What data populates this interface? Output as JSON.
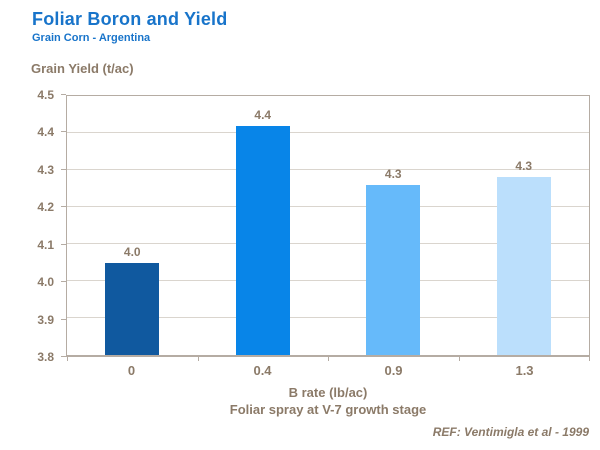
{
  "header": {
    "title": "Foliar Boron and Yield",
    "subtitle": "Grain Corn - Argentina"
  },
  "footer": {
    "reference": "REF: Ventimigla et al - 1999"
  },
  "colors": {
    "title_blue": "#1874CA",
    "label_brown": "#8B7A68",
    "gridline": "#DAD5CE",
    "frame": "#B5ACA3",
    "bars": [
      "#10599F",
      "#0885E8",
      "#66BAFA",
      "#BBDFFC"
    ]
  },
  "chart_data": {
    "type": "bar",
    "title": "Foliar Boron and Yield",
    "subtitle": "Grain Corn - Argentina",
    "ylabel": "Grain Yield (t/ac)",
    "xlabel": "B rate (lb/ac)",
    "xlabel_line2": "Foliar spray at V-7 growth stage",
    "categories": [
      "0",
      "0.4",
      "0.9",
      "1.3"
    ],
    "values": [
      4.05,
      4.42,
      4.26,
      4.28
    ],
    "bar_labels": [
      "4.0",
      "4.4",
      "4.3",
      "4.3"
    ],
    "ylim": [
      3.8,
      4.5
    ],
    "y_ticks": [
      3.8,
      3.9,
      4.0,
      4.1,
      4.2,
      4.3,
      4.4,
      4.5
    ],
    "grid": true,
    "legend": false,
    "reference": "REF: Ventimigla et al - 1999"
  }
}
